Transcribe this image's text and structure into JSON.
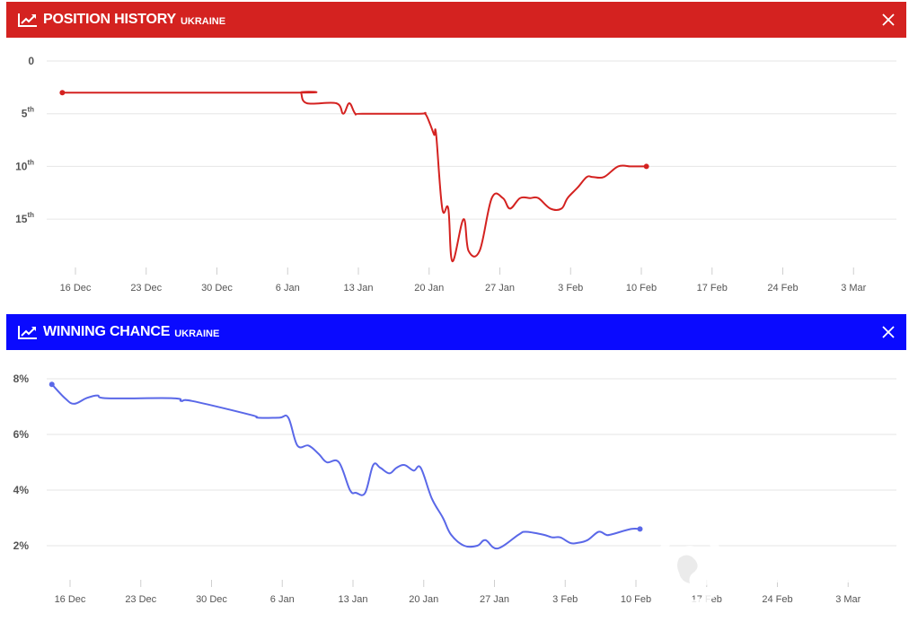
{
  "panels": [
    {
      "title": "POSITION HISTORY",
      "subtitle": "UKRAINE",
      "header_color": "#d42220",
      "line_color": "#d42220",
      "close_icon": "close-icon",
      "chart_icon": "line-chart-icon"
    },
    {
      "title": "WINNING CHANCE",
      "subtitle": "UKRAINE",
      "header_color": "#0a0aff",
      "line_color": "#5a68e8",
      "close_icon": "close-icon",
      "chart_icon": "line-chart-icon"
    }
  ],
  "watermark": {
    "text": "OBOZ.UA"
  },
  "chart_data": [
    {
      "type": "line",
      "title": "POSITION HISTORY",
      "subtitle": "UKRAINE",
      "x_ticks": [
        "16 Dec",
        "23 Dec",
        "30 Dec",
        "6 Jan",
        "13 Jan",
        "20 Jan",
        "27 Jan",
        "3 Feb",
        "10 Feb",
        "17 Feb",
        "24 Feb",
        "3 Mar"
      ],
      "y_ticks": [
        {
          "value": 0,
          "label": "0",
          "suffix": ""
        },
        {
          "value": 5,
          "label": "5",
          "suffix": "th"
        },
        {
          "value": 10,
          "label": "10",
          "suffix": "th"
        },
        {
          "value": 15,
          "label": "15",
          "suffix": "th"
        }
      ],
      "ylim": [
        0,
        19.5
      ],
      "y_inverted": true,
      "grid": true,
      "series": [
        {
          "x": [
            -1.3,
            21.9,
            22.3,
            22.9,
            25.8,
            26.5,
            27.1,
            27.7,
            28.4,
            34.0,
            34.6,
            35.1,
            35.5,
            35.7,
            36.3,
            36.9,
            37.3,
            38.4,
            38.9,
            40.0,
            41.2,
            42.3,
            43.0,
            44.0,
            45.0,
            45.8,
            47.0,
            48.1,
            48.7,
            49.7,
            50.6,
            51.2,
            52.3,
            53.7,
            54.9,
            55.4,
            56.0,
            56.5
          ],
          "y": [
            3,
            3,
            3,
            4,
            4,
            5,
            4,
            5,
            5,
            5,
            5,
            6,
            7,
            7,
            14,
            14,
            19,
            15,
            18,
            18,
            13,
            13,
            14,
            13,
            13,
            13,
            14,
            14,
            13,
            12,
            11,
            11,
            11,
            10,
            10,
            10,
            10,
            10
          ]
        }
      ]
    },
    {
      "type": "line",
      "title": "WINNING CHANCE",
      "subtitle": "UKRAINE",
      "x_ticks": [
        "16 Dec",
        "23 Dec",
        "30 Dec",
        "6 Jan",
        "13 Jan",
        "20 Jan",
        "27 Jan",
        "3 Feb",
        "10 Feb",
        "17 Feb",
        "24 Feb",
        "3 Mar"
      ],
      "y_ticks": [
        {
          "value": 8,
          "label": "8%"
        },
        {
          "value": 6,
          "label": "6%"
        },
        {
          "value": 4,
          "label": "4%"
        },
        {
          "value": 2,
          "label": "2%"
        }
      ],
      "ylim": [
        1.2,
        8.25
      ],
      "unit": "%",
      "grid": true,
      "series": [
        {
          "x": [
            -1.8,
            -0.5,
            0.4,
            1.6,
            2.7,
            3.7,
            10.2,
            11.0,
            12.1,
            17.9,
            18.6,
            20.7,
            21.6,
            22.5,
            23.6,
            24.6,
            25.4,
            26.6,
            27.7,
            28.3,
            29.2,
            30.0,
            30.7,
            31.6,
            32.3,
            33.1,
            34.0,
            34.7,
            35.8,
            36.9,
            37.7,
            39.0,
            40.3,
            41.1,
            42.3,
            44.4,
            45.1,
            46.8,
            47.7,
            48.5,
            49.5,
            50.2,
            51.2,
            52.3,
            53.0,
            53.5,
            55.5,
            56.4
          ],
          "y": [
            7.8,
            7.3,
            7.1,
            7.3,
            7.4,
            7.3,
            7.3,
            7.2,
            7.2,
            6.7,
            6.6,
            6.6,
            6.6,
            5.6,
            5.6,
            5.3,
            5.0,
            5.0,
            4.0,
            3.9,
            3.9,
            4.9,
            4.8,
            4.6,
            4.8,
            4.9,
            4.7,
            4.8,
            3.7,
            3.0,
            2.4,
            2.0,
            2.0,
            2.2,
            1.9,
            2.4,
            2.5,
            2.4,
            2.3,
            2.3,
            2.1,
            2.1,
            2.2,
            2.5,
            2.4,
            2.4,
            2.6,
            2.6
          ]
        }
      ]
    }
  ]
}
